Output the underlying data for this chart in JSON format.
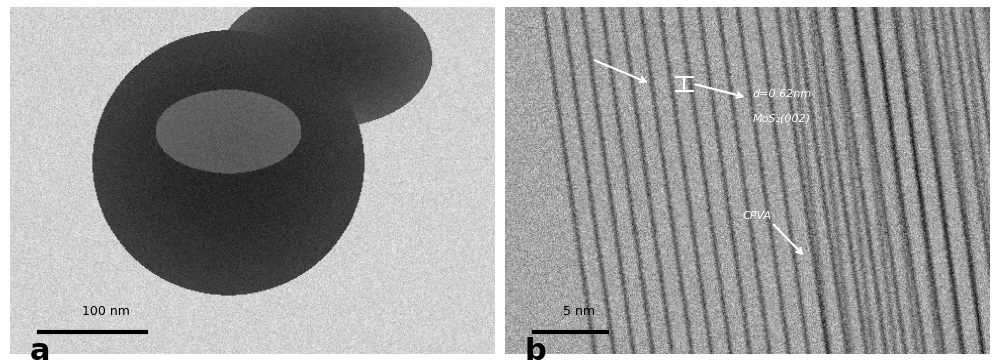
{
  "fig_width": 10.0,
  "fig_height": 3.62,
  "dpi": 100,
  "panel_a_label": "a",
  "panel_b_label": "b",
  "label_fontsize": 22,
  "label_color": "black",
  "scalebar_a_text": "100 nm",
  "scalebar_b_text": "5 nm",
  "annotation_d": "d=0.62nm",
  "annotation_mos2": "MoS₂(002)",
  "annotation_cpva": "CPVA",
  "border_color": "black",
  "border_linewidth": 1.5,
  "background_color": "#c8c8c8"
}
